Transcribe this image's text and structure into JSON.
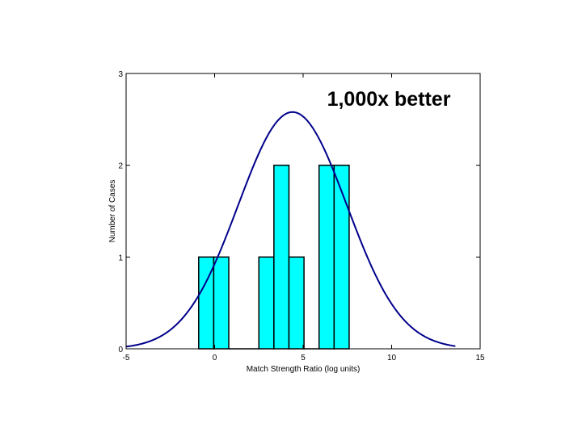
{
  "chart_data": {
    "type": "bar",
    "xlabel": "Match Strength Ratio (log units)",
    "ylabel": "Number of Cases",
    "xlim": [
      -5,
      15
    ],
    "ylim": [
      0,
      3
    ],
    "x_ticks": [
      -5,
      0,
      5,
      10,
      15
    ],
    "y_ticks": [
      0,
      1,
      2,
      3
    ],
    "grid": false,
    "bins": [
      {
        "x0": -0.9,
        "x1": -0.05,
        "value": 1
      },
      {
        "x0": -0.05,
        "x1": 0.8,
        "value": 1
      },
      {
        "x0": 0.8,
        "x1": 1.65,
        "value": 0
      },
      {
        "x0": 1.65,
        "x1": 2.5,
        "value": 0
      },
      {
        "x0": 2.5,
        "x1": 3.35,
        "value": 1
      },
      {
        "x0": 3.35,
        "x1": 4.2,
        "value": 2
      },
      {
        "x0": 4.2,
        "x1": 5.05,
        "value": 1
      },
      {
        "x0": 5.05,
        "x1": 5.9,
        "value": 0
      },
      {
        "x0": 5.9,
        "x1": 6.75,
        "value": 2
      },
      {
        "x0": 6.75,
        "x1": 7.6,
        "value": 2
      }
    ],
    "fit_curve": {
      "type": "normal",
      "mean": 4.4,
      "sd": 3.07,
      "peak": 2.58,
      "x_range": [
        -5,
        13.6
      ]
    },
    "annotations": [
      {
        "text": "1,000x better"
      }
    ],
    "colors": {
      "bar_fill": "#00ffff",
      "bar_stroke": "#000000",
      "curve": "#00008b",
      "axes": "#000000",
      "annotation_box": "#ffffff"
    }
  }
}
